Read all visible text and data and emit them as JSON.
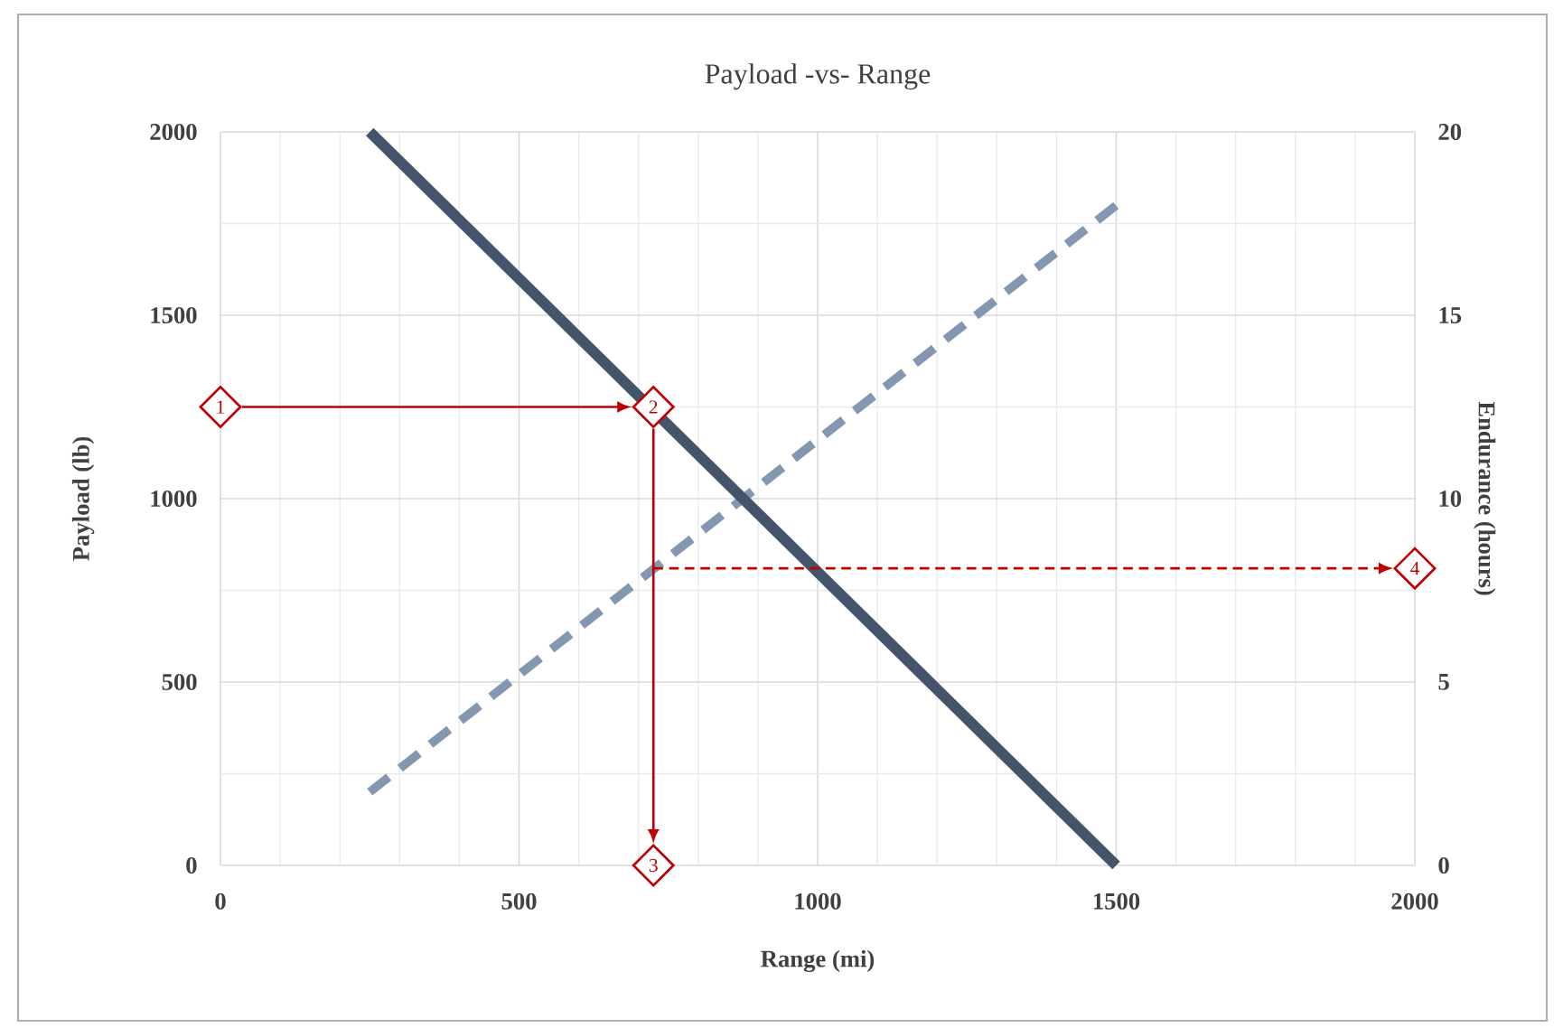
{
  "chart_data": {
    "type": "line",
    "title": "Payload -vs- Range",
    "xlabel": "Range (mi)",
    "ylabel": "Payload (lb)",
    "y2label": "Endurance (hours)",
    "x": [
      250,
      1500
    ],
    "xlim": [
      0,
      2000
    ],
    "xticks": [
      0,
      500,
      1000,
      1500,
      2000
    ],
    "ylim": [
      0,
      2000
    ],
    "yticks": [
      0,
      500,
      1000,
      1500,
      2000
    ],
    "y2lim": [
      0,
      20
    ],
    "y2ticks": [
      0,
      5,
      10,
      15,
      20
    ],
    "grid": true,
    "series": [
      {
        "color": "#44546a",
        "values": [
          2000,
          0
        ],
        "line_style": "solid"
      },
      {
        "color": "#8497b0",
        "values": [
          2,
          18
        ],
        "axis": "y2",
        "line_style": "dashed"
      }
    ],
    "annotations": [
      {
        "text": "1",
        "x": 0,
        "y": 1250
      },
      {
        "text": "2",
        "x": 725,
        "y": 1250
      },
      {
        "text": "3",
        "x": 725,
        "y": 0
      },
      {
        "text": "4",
        "x": 2000,
        "y": 810
      }
    ]
  }
}
